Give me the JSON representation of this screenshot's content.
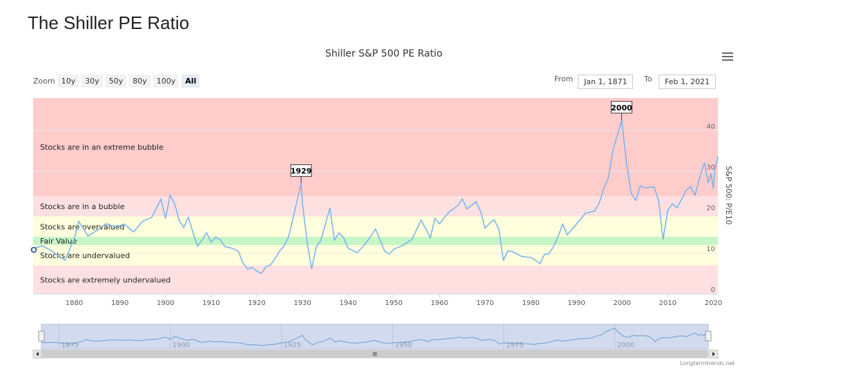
{
  "page": {
    "title": "The Shiller PE Ratio"
  },
  "toolbar": {
    "zoom_label": "Zoom",
    "zoom_buttons": [
      "10y",
      "30y",
      "50y",
      "80y",
      "100y",
      "All"
    ],
    "active_zoom": "All",
    "from_label": "From",
    "from_value": "Jan 1, 1871",
    "to_label": "To",
    "to_value": "Feb 1, 2021",
    "menu_icon": "hamburger-menu-icon"
  },
  "credit": "Longtermtrends.net",
  "chart_data": {
    "type": "line",
    "title": "Shiller S&P 500 PE Ratio",
    "ylabel": "S&P 500: P/E10",
    "xlabel": "",
    "xlim": [
      1871,
      2021
    ],
    "ylim": [
      0,
      48
    ],
    "yticks": [
      0,
      10,
      20,
      30,
      40
    ],
    "xticks": [
      1880,
      1890,
      1900,
      1910,
      1920,
      1930,
      1940,
      1950,
      1960,
      1970,
      1980,
      1990,
      2000,
      2010,
      2020
    ],
    "grid": true,
    "zones": [
      {
        "label": "Stocks are in an extreme bubble",
        "from": 24,
        "to": 48,
        "color": "#ffcccc"
      },
      {
        "label": "Stocks are in a bubble",
        "from": 19,
        "to": 24,
        "color": "#ffe0e0"
      },
      {
        "label": "Stocks are overvalued",
        "from": 14,
        "to": 19,
        "color": "#ffffdd"
      },
      {
        "label": "Fair Value",
        "from": 12,
        "to": 14,
        "color": "#c6f5c6"
      },
      {
        "label": "Stocks are undervalued",
        "from": 7,
        "to": 12,
        "color": "#ffffdd"
      },
      {
        "label": "Stocks are extremely undervalued",
        "from": 0,
        "to": 7,
        "color": "#ffe0e0"
      }
    ],
    "annotations": [
      {
        "label": "1929",
        "x": 1929.7,
        "y": 27.1
      },
      {
        "label": "2000",
        "x": 1999.9,
        "y": 42.6
      }
    ],
    "series": [
      {
        "color": "#7cb5ec",
        "x": [
          1871,
          1873,
          1875,
          1877,
          1878,
          1880,
          1881,
          1883,
          1885,
          1887,
          1889,
          1891,
          1893,
          1895,
          1897,
          1899,
          1900,
          1901,
          1902,
          1903,
          1904,
          1905,
          1906,
          1907,
          1908,
          1909,
          1910,
          1911,
          1912,
          1913,
          1914,
          1915,
          1916,
          1917,
          1918,
          1919,
          1920,
          1921,
          1922,
          1923,
          1924,
          1925,
          1926,
          1927,
          1928,
          1929.7,
          1930,
          1931,
          1932,
          1933,
          1934,
          1935,
          1936,
          1937,
          1938,
          1939,
          1940,
          1942,
          1944,
          1946,
          1948,
          1949,
          1950,
          1952,
          1954,
          1956,
          1958,
          1959,
          1960,
          1962,
          1964,
          1965,
          1966,
          1967,
          1968,
          1969,
          1970,
          1971,
          1972,
          1973,
          1974,
          1975,
          1976,
          1978,
          1980,
          1981,
          1982,
          1983,
          1984,
          1985,
          1986,
          1987,
          1988,
          1990,
          1992,
          1994,
          1995,
          1996,
          1997,
          1998,
          1999.9,
          2001,
          2002,
          2003,
          2004,
          2005,
          2007,
          2008,
          2009,
          2010,
          2011,
          2012,
          2013,
          2014,
          2015,
          2016,
          2017,
          2018,
          2018.9,
          2019.5,
          2020,
          2020.3,
          2021
        ],
        "values": [
          11.1,
          11.8,
          10.6,
          9.0,
          8.3,
          13.5,
          17.8,
          14.2,
          15.6,
          17.2,
          16.4,
          17.1,
          15.2,
          17.8,
          18.8,
          23.2,
          18.5,
          24.2,
          22.1,
          18.0,
          16.3,
          18.8,
          15.1,
          11.7,
          13.2,
          15.0,
          12.6,
          13.9,
          13.3,
          11.6,
          11.4,
          11.0,
          10.4,
          7.5,
          6.1,
          6.5,
          5.6,
          5.0,
          6.7,
          7.1,
          8.7,
          10.5,
          11.8,
          14.1,
          18.9,
          27.1,
          22.1,
          12.9,
          6.1,
          11.5,
          13.1,
          17.0,
          21.1,
          13.2,
          15.0,
          13.8,
          11.2,
          10.1,
          12.6,
          15.9,
          10.5,
          9.8,
          11.0,
          11.9,
          13.4,
          18.1,
          13.8,
          18.5,
          17.2,
          20.0,
          21.6,
          23.3,
          20.8,
          21.7,
          22.6,
          20.3,
          16.1,
          17.3,
          18.2,
          15.9,
          8.3,
          10.6,
          10.4,
          9.2,
          8.9,
          8.3,
          7.4,
          9.7,
          9.9,
          11.6,
          14.1,
          17.1,
          14.5,
          17.1,
          19.8,
          20.3,
          22.3,
          25.9,
          28.5,
          35.2,
          42.6,
          31.9,
          24.7,
          22.9,
          26.5,
          26.0,
          26.2,
          22.9,
          13.3,
          20.5,
          22.1,
          21.1,
          23.1,
          25.3,
          26.3,
          24.2,
          28.4,
          32.2,
          27.2,
          29.5,
          25.8,
          30.3,
          33.7
        ]
      }
    ],
    "navigator": {
      "xticks": [
        1875,
        1900,
        1925,
        1950,
        1975,
        2000
      ]
    }
  }
}
